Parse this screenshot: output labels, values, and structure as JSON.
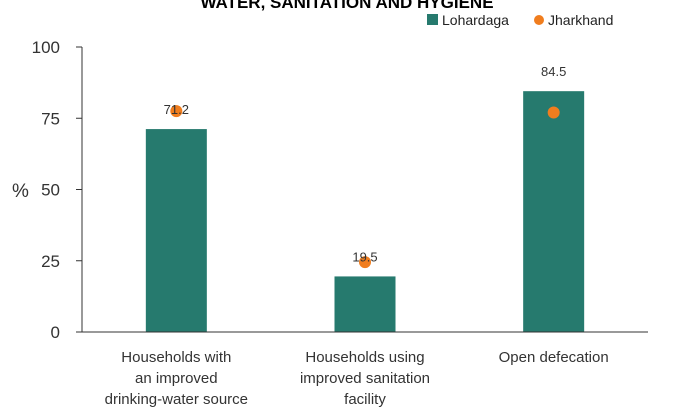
{
  "chart_data": {
    "type": "bar",
    "title": "WATER, SANITATION AND HYGIENE",
    "ylabel": "%",
    "ylim": [
      0,
      100
    ],
    "yticks": [
      0,
      25,
      50,
      75,
      100
    ],
    "categories": [
      [
        "Households with",
        "an improved",
        "drinking-water source"
      ],
      [
        "Households using",
        "improved sanitation",
        "facility"
      ],
      [
        "Open defecation"
      ]
    ],
    "series": [
      {
        "name": "Lohardaga",
        "kind": "bar",
        "color": "#267a6e",
        "values": [
          71.2,
          19.5,
          84.5
        ]
      },
      {
        "name": "Jharkhand",
        "kind": "marker",
        "color": "#f07d1e",
        "values": [
          77.5,
          24.5,
          77.0
        ]
      }
    ],
    "data_labels": [
      "71.2",
      "19.5",
      "84.5"
    ],
    "legend_position": "top-right",
    "grid": false
  }
}
